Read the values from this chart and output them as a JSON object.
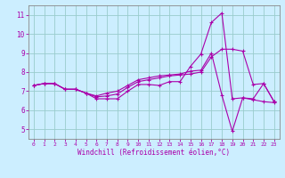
{
  "xlabel": "Windchill (Refroidissement éolien,°C)",
  "xlim": [
    -0.5,
    23.5
  ],
  "ylim": [
    4.5,
    11.5
  ],
  "yticks": [
    5,
    6,
    7,
    8,
    9,
    10,
    11
  ],
  "xticks": [
    0,
    1,
    2,
    3,
    4,
    5,
    6,
    7,
    8,
    9,
    10,
    11,
    12,
    13,
    14,
    15,
    16,
    17,
    18,
    19,
    20,
    21,
    22,
    23
  ],
  "bg_color": "#cceeff",
  "line_color": "#aa00aa",
  "grid_color": "#99cccc",
  "line1_y": [
    7.3,
    7.4,
    7.4,
    7.1,
    7.1,
    6.9,
    6.6,
    6.6,
    6.6,
    7.0,
    7.35,
    7.35,
    7.3,
    7.5,
    7.5,
    8.3,
    8.95,
    10.6,
    11.1,
    6.6,
    6.65,
    6.55,
    6.45,
    6.4
  ],
  "line2_y": [
    7.3,
    7.4,
    7.4,
    7.1,
    7.1,
    6.9,
    6.7,
    6.75,
    6.85,
    7.2,
    7.5,
    7.6,
    7.7,
    7.8,
    7.85,
    7.9,
    8.0,
    8.8,
    9.2,
    9.2,
    9.1,
    7.35,
    7.4,
    6.45
  ],
  "line3_y": [
    7.3,
    7.4,
    7.4,
    7.1,
    7.1,
    6.9,
    6.75,
    6.9,
    7.0,
    7.3,
    7.6,
    7.7,
    7.8,
    7.85,
    7.9,
    8.05,
    8.1,
    9.0,
    6.8,
    4.9,
    6.65,
    6.6,
    7.4,
    6.45
  ]
}
